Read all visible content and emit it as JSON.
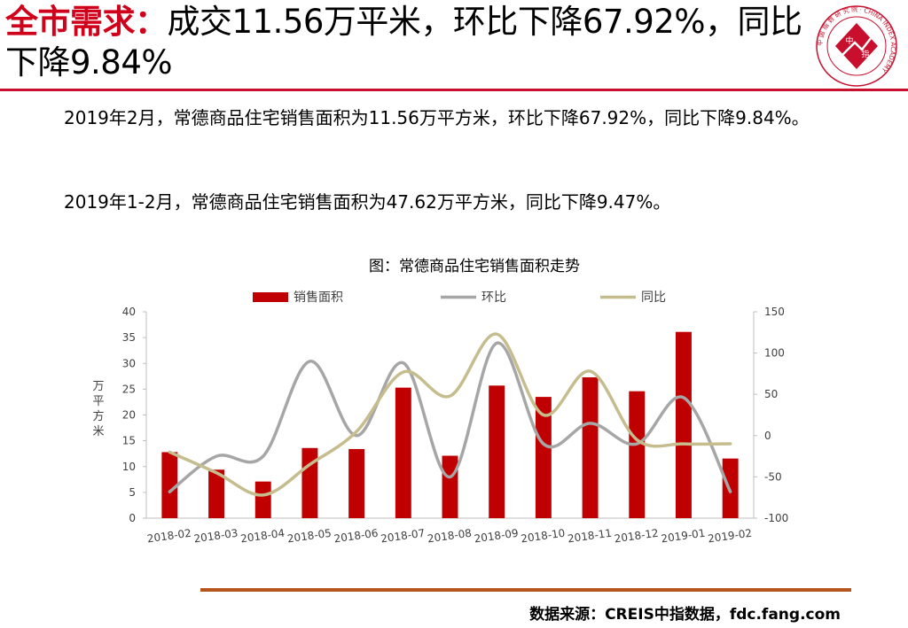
{
  "header": {
    "title_highlight": "全市需求：",
    "title_rest": "成交11.56万平米，环比下降67.92%，同比下降9.84%",
    "logo_chars": [
      "中",
      "指"
    ],
    "logo_ring_text": "中 国 指 数 研 究 院 · CHINA INDEX ACADEMY"
  },
  "body": {
    "paragraph1": "2019年2月，常德商品住宅销售面积为11.56万平方米，环比下降67.92%，同比下降9.84%。",
    "paragraph2": "2019年1-2月，常德商品住宅销售面积为47.62万平方米，同比下降9.47%。"
  },
  "chart_data": {
    "type": "bar",
    "title": "图：常德商品住宅销售面积走势",
    "categories": [
      "2018-02",
      "2018-03",
      "2018-04",
      "2018-05",
      "2018-06",
      "2018-07",
      "2018-08",
      "2018-09",
      "2018-10",
      "2018-11",
      "2018-12",
      "2019-01",
      "2019-02"
    ],
    "series": [
      {
        "name": "销售面积",
        "type": "bar",
        "axis": "left",
        "color": "#c00000",
        "values": [
          12.8,
          9.4,
          7.1,
          13.6,
          13.4,
          25.3,
          12.1,
          25.7,
          23.5,
          27.3,
          24.6,
          36.1,
          11.56
        ]
      },
      {
        "name": "环比",
        "type": "line",
        "axis": "right",
        "color": "#a6a6a6",
        "values": [
          -68,
          -25,
          -25,
          90,
          0,
          88,
          -50,
          112,
          -10,
          15,
          -10,
          46,
          -67.92
        ]
      },
      {
        "name": "同比",
        "type": "line",
        "axis": "right",
        "color": "#c6bd8e",
        "values": [
          -20,
          -45,
          -72,
          -35,
          5,
          77,
          48,
          123,
          25,
          78,
          -5,
          -10,
          -9.84
        ]
      }
    ],
    "ylabel_left": "万平方米",
    "ylabel_right": "%",
    "ylim_left": [
      0,
      40
    ],
    "yticks_left": [
      0,
      5,
      10,
      15,
      20,
      25,
      30,
      35,
      40
    ],
    "ylim_right": [
      -100,
      150
    ],
    "yticks_right": [
      -100,
      -50,
      0,
      50,
      100,
      150
    ],
    "grid": false,
    "legend_position": "top"
  },
  "footer": {
    "source": "数据来源：CREIS中指数据，fdc.fang.com"
  }
}
